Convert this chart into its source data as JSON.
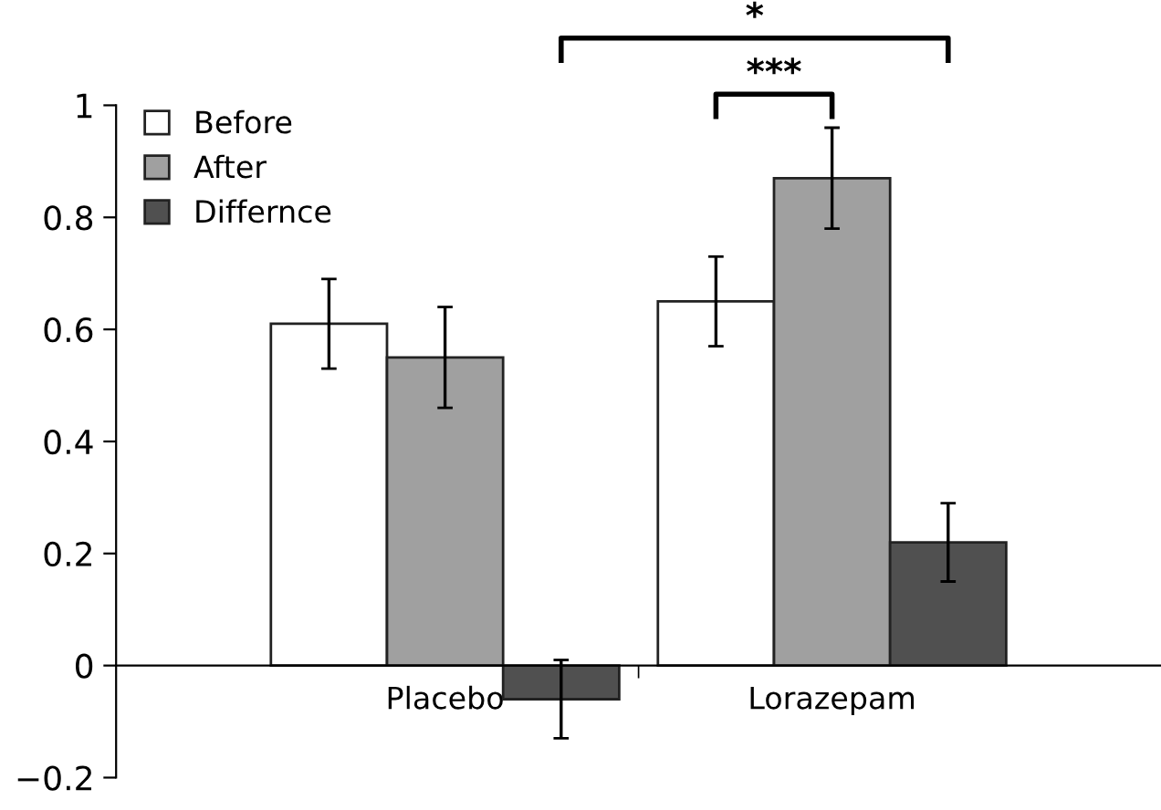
{
  "chart_data": {
    "type": "bar",
    "categories": [
      "Placebo",
      "Lorazepam"
    ],
    "series": [
      {
        "name": "Before",
        "color": "#ffffff",
        "values": [
          0.61,
          0.65
        ],
        "errors": [
          0.08,
          0.08
        ]
      },
      {
        "name": "After",
        "color": "#a0a0a0",
        "values": [
          0.55,
          0.87
        ],
        "errors": [
          0.09,
          0.09
        ]
      },
      {
        "name": "Differnce",
        "color": "#505050",
        "values": [
          -0.06,
          0.22
        ],
        "errors": [
          0.07,
          0.07
        ]
      }
    ],
    "ylim": [
      -0.2,
      1
    ],
    "yticks": [
      {
        "value": -0.2,
        "label": "−0.2"
      },
      0,
      0.2,
      0.4,
      0.6,
      0.8,
      1
    ],
    "annotations": [
      "*",
      "***"
    ],
    "legend": "top left",
    "grid": false
  }
}
